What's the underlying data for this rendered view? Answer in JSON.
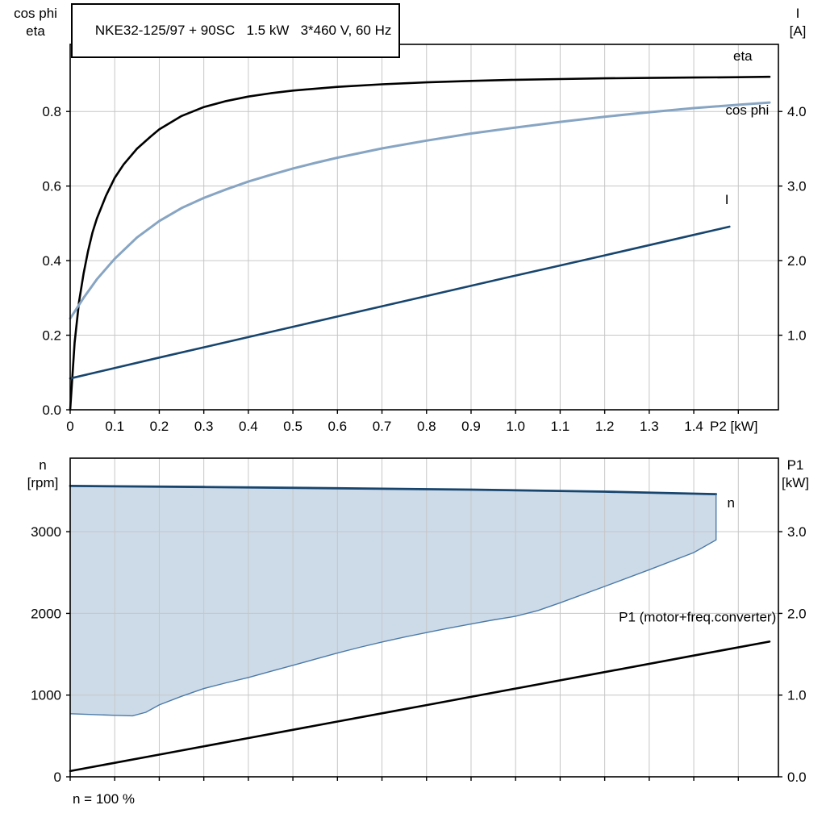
{
  "style": {
    "grid": "#c6c6c6",
    "axis": "#000000",
    "region_fill": "#cddbe9",
    "region_edge": "#4c7aa8",
    "dark_blue": "#17456e",
    "light_blue": "#87a5c3",
    "black": "#000000"
  },
  "chart_data": [
    {
      "type": "line",
      "title": "NKE32-125/97 + 90SC   1.5 kW   3*460 V, 60 Hz",
      "xlabel": "P2 [kW]",
      "xlabel_at": 1.49,
      "ylabel_left": "cos phi / eta",
      "ylabel_right": "I [A]",
      "y_left_title_lines": [
        "cos phi",
        "eta"
      ],
      "y_right_title_lines": [
        "I",
        "[A]"
      ],
      "xlim": [
        0,
        1.59
      ],
      "ylim_left": [
        0,
        0.98
      ],
      "ylim_right": [
        0,
        4.9
      ],
      "x_grid": [
        0.1,
        0.2,
        0.3,
        0.4,
        0.5,
        0.6,
        0.7,
        0.8,
        0.9,
        1.0,
        1.1,
        1.2,
        1.3,
        1.4,
        1.5
      ],
      "x_tick_values": [
        0,
        0.1,
        0.2,
        0.3,
        0.4,
        0.5,
        0.6,
        0.7,
        0.8,
        0.9,
        1.0,
        1.1,
        1.2,
        1.3,
        1.4
      ],
      "x_tick_labels": [
        "0",
        "0.1",
        "0.2",
        "0.3",
        "0.4",
        "0.5",
        "0.6",
        "0.7",
        "0.8",
        "0.9",
        "1.0",
        "1.1",
        "1.2",
        "1.3",
        "1.4"
      ],
      "y_left_grid": [
        0.2,
        0.4,
        0.6,
        0.8
      ],
      "y_left_tick_values": [
        0,
        0.2,
        0.4,
        0.6,
        0.8
      ],
      "y_left_tick_labels": [
        "0.0",
        "0.2",
        "0.4",
        "0.6",
        "0.8"
      ],
      "y_right_tick_values": [
        1,
        2,
        3,
        4
      ],
      "y_right_tick_labels": [
        "1.0",
        "2.0",
        "3.0",
        "4.0"
      ],
      "series": [
        {
          "id": "eta",
          "name": "eta",
          "label": "eta",
          "label_at": [
            1.51,
            0.937
          ],
          "anchor": "middle",
          "axis": "left",
          "color": "#000000",
          "width": 2.6,
          "points": [
            [
              0,
              0
            ],
            [
              0.01,
              0.18
            ],
            [
              0.02,
              0.29
            ],
            [
              0.03,
              0.365
            ],
            [
              0.04,
              0.425
            ],
            [
              0.05,
              0.475
            ],
            [
              0.06,
              0.513
            ],
            [
              0.08,
              0.573
            ],
            [
              0.1,
              0.622
            ],
            [
              0.12,
              0.658
            ],
            [
              0.15,
              0.7
            ],
            [
              0.18,
              0.732
            ],
            [
              0.2,
              0.752
            ],
            [
              0.25,
              0.788
            ],
            [
              0.3,
              0.812
            ],
            [
              0.35,
              0.828
            ],
            [
              0.4,
              0.84
            ],
            [
              0.45,
              0.849
            ],
            [
              0.5,
              0.856
            ],
            [
              0.6,
              0.866
            ],
            [
              0.7,
              0.873
            ],
            [
              0.8,
              0.878
            ],
            [
              0.9,
              0.882
            ],
            [
              1.0,
              0.885
            ],
            [
              1.1,
              0.887
            ],
            [
              1.2,
              0.889
            ],
            [
              1.3,
              0.89
            ],
            [
              1.4,
              0.891
            ],
            [
              1.5,
              0.892
            ],
            [
              1.57,
              0.893
            ]
          ]
        },
        {
          "id": "cos-phi",
          "name": "cos phi",
          "label": "cos phi",
          "label_at": [
            1.52,
            0.792
          ],
          "anchor": "middle",
          "axis": "left",
          "color": "#87a5c3",
          "width": 3,
          "points": [
            [
              0,
              0.245
            ],
            [
              0.03,
              0.3
            ],
            [
              0.06,
              0.35
            ],
            [
              0.1,
              0.405
            ],
            [
              0.15,
              0.462
            ],
            [
              0.2,
              0.506
            ],
            [
              0.25,
              0.541
            ],
            [
              0.3,
              0.568
            ],
            [
              0.35,
              0.591
            ],
            [
              0.4,
              0.612
            ],
            [
              0.45,
              0.63
            ],
            [
              0.5,
              0.647
            ],
            [
              0.55,
              0.662
            ],
            [
              0.6,
              0.676
            ],
            [
              0.7,
              0.701
            ],
            [
              0.8,
              0.722
            ],
            [
              0.9,
              0.741
            ],
            [
              1.0,
              0.757
            ],
            [
              1.1,
              0.772
            ],
            [
              1.2,
              0.786
            ],
            [
              1.3,
              0.798
            ],
            [
              1.4,
              0.809
            ],
            [
              1.5,
              0.818
            ],
            [
              1.57,
              0.824
            ]
          ]
        },
        {
          "id": "current",
          "name": "I",
          "label": "I",
          "label_at": [
            1.47,
            2.76
          ],
          "anchor": "start",
          "axis": "right",
          "color": "#17456e",
          "width": 2.6,
          "points": [
            [
              0,
              0.42
            ],
            [
              0.2,
              0.7
            ],
            [
              0.4,
              0.975
            ],
            [
              0.6,
              1.25
            ],
            [
              0.8,
              1.525
            ],
            [
              1.0,
              1.8
            ],
            [
              1.2,
              2.07
            ],
            [
              1.4,
              2.345
            ],
            [
              1.48,
              2.455
            ]
          ]
        }
      ]
    },
    {
      "type": "line",
      "title": "",
      "xlabel": "",
      "ylabel_left": "n [rpm]",
      "ylabel_right": "P1 [kW]",
      "y_left_title_lines": [
        "n",
        "[rpm]"
      ],
      "y_right_title_lines": [
        "P1",
        "[kW]"
      ],
      "annotation": "n = 100 %",
      "xlim": [
        0,
        1.59
      ],
      "ylim_left": [
        0,
        3900
      ],
      "ylim_right": [
        0,
        3.9
      ],
      "x_grid": [
        0.1,
        0.2,
        0.3,
        0.4,
        0.5,
        0.6,
        0.7,
        0.8,
        0.9,
        1.0,
        1.1,
        1.2,
        1.3,
        1.4,
        1.5
      ],
      "x_tick_values": [],
      "x_tick_labels": [],
      "y_left_grid": [
        1000,
        2000,
        3000
      ],
      "y_left_tick_values": [
        0,
        1000,
        2000,
        3000
      ],
      "y_left_tick_labels": [
        "0",
        "1000",
        "2000",
        "3000"
      ],
      "y_right_tick_values": [
        0,
        1,
        2,
        3
      ],
      "y_right_tick_labels": [
        "0.0",
        "1.0",
        "2.0",
        "3.0"
      ],
      "region": {
        "upper": [
          [
            0,
            3560
          ],
          [
            0.3,
            3548
          ],
          [
            0.6,
            3532
          ],
          [
            0.9,
            3515
          ],
          [
            1.2,
            3490
          ],
          [
            1.45,
            3460
          ]
        ],
        "lower": [
          [
            0,
            772
          ],
          [
            0.05,
            762
          ],
          [
            0.1,
            752
          ],
          [
            0.14,
            746
          ],
          [
            0.17,
            790
          ],
          [
            0.2,
            880
          ],
          [
            0.25,
            985
          ],
          [
            0.3,
            1080
          ],
          [
            0.35,
            1150
          ],
          [
            0.4,
            1215
          ],
          [
            0.45,
            1290
          ],
          [
            0.5,
            1365
          ],
          [
            0.55,
            1440
          ],
          [
            0.6,
            1515
          ],
          [
            0.65,
            1585
          ],
          [
            0.7,
            1650
          ],
          [
            0.75,
            1710
          ],
          [
            0.8,
            1765
          ],
          [
            0.85,
            1820
          ],
          [
            0.9,
            1870
          ],
          [
            0.95,
            1920
          ],
          [
            1.0,
            1965
          ],
          [
            1.05,
            2035
          ],
          [
            1.1,
            2130
          ],
          [
            1.2,
            2330
          ],
          [
            1.3,
            2535
          ],
          [
            1.4,
            2745
          ],
          [
            1.45,
            2900
          ]
        ]
      },
      "series": [
        {
          "id": "speed",
          "name": "n",
          "label": "n",
          "label_at": [
            1.475,
            3300
          ],
          "anchor": "start",
          "axis": "left",
          "color": "#17456e",
          "width": 2.8,
          "points": [
            [
              0,
              3560
            ],
            [
              0.3,
              3548
            ],
            [
              0.6,
              3532
            ],
            [
              0.9,
              3515
            ],
            [
              1.2,
              3490
            ],
            [
              1.45,
              3460
            ]
          ]
        },
        {
          "id": "p1",
          "name": "P1",
          "label": "P1 (motor+freq.converter)",
          "label_at": [
            1.585,
            1.9
          ],
          "anchor": "end",
          "axis": "right",
          "color": "#000000",
          "width": 2.6,
          "points": [
            [
              0,
              0.07
            ],
            [
              0.2,
              0.272
            ],
            [
              0.4,
              0.474
            ],
            [
              0.6,
              0.676
            ],
            [
              0.8,
              0.878
            ],
            [
              1.0,
              1.08
            ],
            [
              1.2,
              1.282
            ],
            [
              1.4,
              1.484
            ],
            [
              1.57,
              1.655
            ]
          ]
        }
      ]
    }
  ]
}
